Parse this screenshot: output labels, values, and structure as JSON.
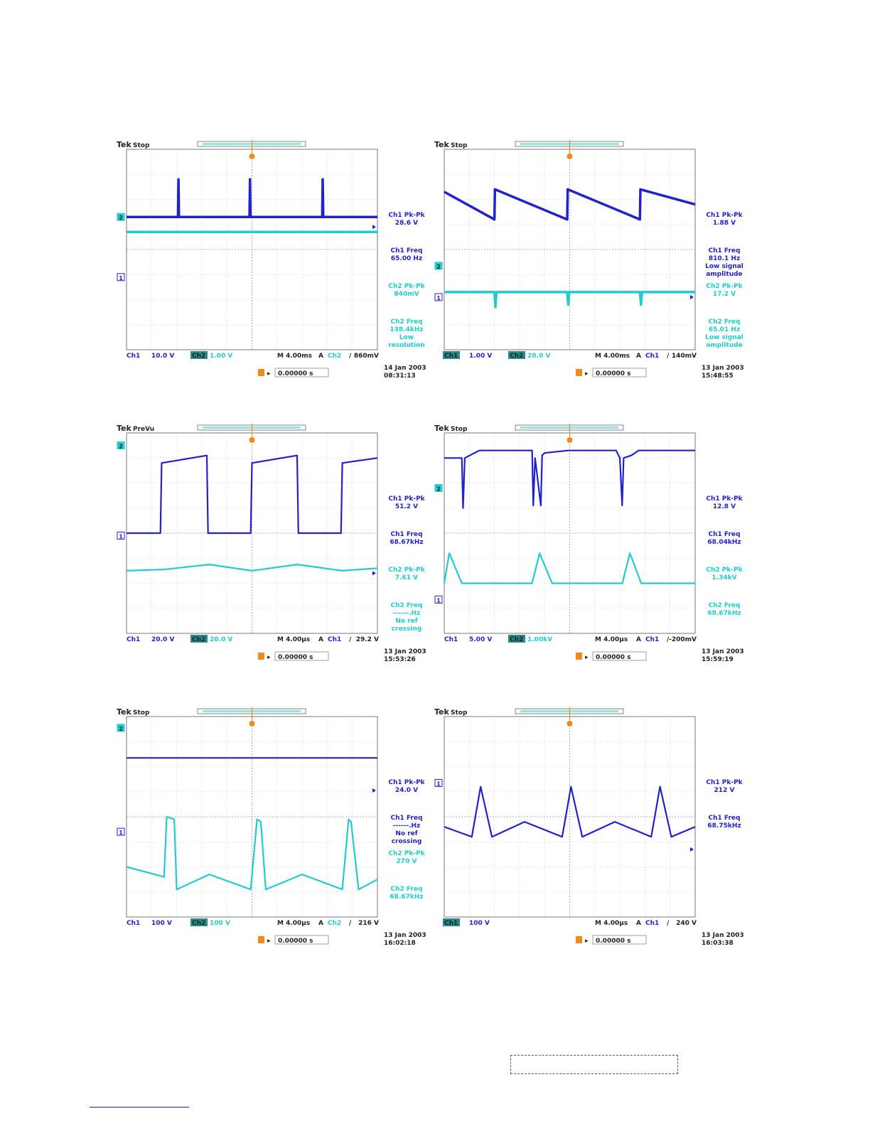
{
  "colors": {
    "ch1": "#2222cc",
    "ch2": "#22cccc",
    "grid": "#b8b8b8",
    "trigger": "#f08a1e"
  },
  "scopes": [
    {
      "brand": "Tek",
      "mode": "Stop",
      "measurements": [
        {
          "label": "Ch1 Pk-Pk",
          "value": "28.6 V",
          "ch": 1
        },
        {
          "label": "Ch1 Freq",
          "value": "65.00 Hz",
          "ch": 1
        },
        {
          "label": "Ch2 Pk-Pk",
          "value": "840mV",
          "ch": 2
        },
        {
          "label": "Ch2 Freq",
          "value": "138.4kHz",
          "extra": [
            "Low",
            "resolution"
          ],
          "ch": 2
        }
      ],
      "bottom": {
        "ch1": "Ch1",
        "ch1_scale": "10.0 V",
        "ch2": "Ch2",
        "ch2_scale": "1.00 V",
        "timebase": "M 4.00ms",
        "trig_mode": "A",
        "trig_src": "Ch2",
        "trig_level": "860mV",
        "ch1_hl": false
      },
      "offset": "0.00000 s",
      "date": "14 Jan  2003",
      "time": "08:31:13",
      "markers": {
        "ch1": 2.9,
        "ch2": 5.3,
        "level": 4.9
      }
    },
    {
      "brand": "Tek",
      "mode": "Stop",
      "measurements": [
        {
          "label": "Ch1 Pk-Pk",
          "value": "1.88 V",
          "ch": 1
        },
        {
          "label": "Ch1 Freq",
          "value": "810.1 Hz",
          "extra": [
            "Low signal",
            "amplitude"
          ],
          "ch": 1
        },
        {
          "label": "Ch2 Pk-Pk",
          "value": "17.2 V",
          "ch": 2
        },
        {
          "label": "Ch2 Freq",
          "value": "65.01 Hz",
          "extra": [
            "Low signal",
            "amplitude"
          ],
          "ch": 2
        }
      ],
      "bottom": {
        "ch1": "Ch1",
        "ch1_scale": "1.00 V",
        "ch2": "Ch2",
        "ch2_scale": "20.0 V",
        "timebase": "M 4.00ms",
        "trig_mode": "A",
        "trig_src": "Ch1",
        "trig_level": "140mV",
        "ch1_hl": true
      },
      "offset": "0.00000 s",
      "date": "13 Jan  2003",
      "time": "15:48:55",
      "markers": {
        "ch1": 2.1,
        "ch2": 3.35,
        "level": 2.1
      }
    },
    {
      "brand": "Tek",
      "mode": "PreVu",
      "measurements": [
        {
          "label": "Ch1 Pk-Pk",
          "value": "51.2 V",
          "ch": 1
        },
        {
          "label": "Ch1 Freq",
          "value": "68.67kHz",
          "ch": 1
        },
        {
          "label": "Ch2 Pk-Pk",
          "value": "7.61 V",
          "ch": 2
        },
        {
          "label": "Ch2 Freq",
          "value": "------.Hz",
          "extra": [
            "No ref",
            "crossing"
          ],
          "ch": 2
        }
      ],
      "bottom": {
        "ch1": "Ch1",
        "ch1_scale": "20.0 V",
        "ch2": "Ch2",
        "ch2_scale": "20.0 V",
        "timebase": "M 4.00µs",
        "trig_mode": "A",
        "trig_src": "Ch1",
        "trig_level": "29.2 V",
        "ch1_hl": false
      },
      "offset": "0.00000 s",
      "date": "13 Jan  2003",
      "time": "15:53:26",
      "markers": {
        "ch1": 3.9,
        "ch2": 7.5,
        "level": 2.4
      }
    },
    {
      "brand": "Tek",
      "mode": "Stop",
      "measurements": [
        {
          "label": "Ch1 Pk-Pk",
          "value": "12.8 V",
          "ch": 1
        },
        {
          "label": "Ch1 Freq",
          "value": "68.04kHz",
          "ch": 1
        },
        {
          "label": "Ch2 Pk-Pk",
          "value": "1.34kV",
          "ch": 2
        },
        {
          "label": "Ch2 Freq",
          "value": "68.67kHz",
          "ch": 2
        }
      ],
      "bottom": {
        "ch1": "Ch1",
        "ch1_scale": "5.00 V",
        "ch2": "Ch2",
        "ch2_scale": "1.00kV",
        "timebase": "M 4.00µs",
        "trig_mode": "A",
        "trig_src": "Ch1",
        "trig_level": "-200mV",
        "ch1_hl": false
      },
      "offset": "0.00000 s",
      "date": "13 Jan  2003",
      "time": "15:59:19",
      "markers": {
        "ch1": 1.35,
        "ch2": 5.8,
        "level": null
      }
    },
    {
      "brand": "Tek",
      "mode": "Stop",
      "measurements": [
        {
          "label": "Ch1 Pk-Pk",
          "value": "24.0 V",
          "ch": 1
        },
        {
          "label": "Ch1 Freq",
          "value": "------.Hz",
          "extra": [
            "No ref",
            "crossing"
          ],
          "ch": 1
        },
        {
          "label": "Ch2 Pk-Pk",
          "value": "270 V",
          "ch": 2
        },
        {
          "label": "Ch2 Freq",
          "value": "68.67kHz",
          "ch": 2
        }
      ],
      "bottom": {
        "ch1": "Ch1",
        "ch1_scale": "100 V",
        "ch2": "Ch2",
        "ch2_scale": "100 V",
        "timebase": "M 4.00µs",
        "trig_mode": "A",
        "trig_src": "Ch2",
        "trig_level": "216 V",
        "ch1_hl": false
      },
      "offset": "0.00000 s",
      "date": "13 Jan  2003",
      "time": "16:02:18",
      "markers": {
        "ch1": 3.4,
        "ch2": 7.55,
        "level": 5.05
      }
    },
    {
      "brand": "Tek",
      "mode": "Stop",
      "measurements": [
        {
          "label": "Ch1 Pk-Pk",
          "value": "212 V",
          "ch": 1
        },
        {
          "label": "Ch1 Freq",
          "value": "68.75kHz",
          "ch": 1
        }
      ],
      "bottom": {
        "ch1": "Ch1",
        "ch1_scale": "100 V",
        "ch2": "",
        "ch2_scale": "",
        "timebase": "M 4.00µs",
        "trig_mode": "A",
        "trig_src": "Ch1",
        "trig_level": "240 V",
        "ch1_hl": true
      },
      "offset": "0.00000 s",
      "date": "13 Jan  2003",
      "time": "16:03:38",
      "markers": {
        "ch1": 5.35,
        "ch2": null,
        "level": 2.7
      }
    }
  ],
  "chart_data": [
    {
      "type": "line",
      "title": "",
      "x_unit": "div",
      "y_unit": "div",
      "xlim": [
        0,
        10
      ],
      "ylim": [
        0,
        8
      ],
      "grid": true,
      "series": [
        {
          "name": "Ch1",
          "x": [
            0,
            2.05,
            2.07,
            2.09,
            4.9,
            4.92,
            4.94,
            7.8,
            7.82,
            7.84,
            10
          ],
          "y": [
            5.3,
            5.3,
            6.8,
            5.3,
            5.3,
            6.8,
            5.3,
            5.3,
            6.8,
            5.3,
            5.3
          ]
        },
        {
          "name": "Ch2",
          "x": [
            0,
            10
          ],
          "y": [
            4.7,
            4.7
          ]
        }
      ]
    },
    {
      "type": "line",
      "title": "",
      "x_unit": "div",
      "y_unit": "div",
      "xlim": [
        0,
        10
      ],
      "ylim": [
        0,
        8
      ],
      "grid": true,
      "series": [
        {
          "name": "Ch1",
          "x": [
            0,
            2.0,
            2.02,
            4.9,
            4.92,
            7.8,
            7.82,
            10
          ],
          "y": [
            6.3,
            5.2,
            6.4,
            5.2,
            6.4,
            5.2,
            6.4,
            5.8
          ]
        },
        {
          "name": "Ch2",
          "x": [
            0,
            2.0,
            2.04,
            2.08,
            4.9,
            4.94,
            4.98,
            7.8,
            7.84,
            7.88,
            10
          ],
          "y": [
            2.3,
            2.3,
            1.7,
            2.3,
            2.3,
            1.8,
            2.3,
            2.3,
            1.8,
            2.3,
            2.3
          ]
        }
      ]
    },
    {
      "type": "line",
      "title": "",
      "x_unit": "div",
      "y_unit": "div",
      "xlim": [
        0,
        10
      ],
      "ylim": [
        0,
        8
      ],
      "grid": true,
      "series": [
        {
          "name": "Ch1",
          "x": [
            0,
            1.35,
            1.4,
            3.2,
            3.25,
            4.95,
            5.0,
            6.8,
            6.85,
            8.55,
            8.6,
            10
          ],
          "y": [
            4.0,
            4.0,
            6.8,
            7.1,
            4.0,
            4.0,
            6.8,
            7.1,
            4.0,
            4.0,
            6.8,
            7.0
          ]
        },
        {
          "name": "Ch2",
          "x": [
            0,
            1.5,
            3.3,
            5.0,
            6.8,
            8.6,
            10
          ],
          "y": [
            2.5,
            2.55,
            2.75,
            2.5,
            2.75,
            2.5,
            2.6
          ]
        }
      ]
    },
    {
      "type": "line",
      "title": "",
      "x_unit": "div",
      "y_unit": "div",
      "xlim": [
        0,
        10
      ],
      "ylim": [
        0,
        8
      ],
      "grid": true,
      "series": [
        {
          "name": "Ch1",
          "x": [
            0,
            0.7,
            0.75,
            0.82,
            1.4,
            3.5,
            3.55,
            3.62,
            3.85,
            3.9,
            4.0,
            4.95,
            6.85,
            7.0,
            7.09,
            7.15,
            7.45,
            7.75,
            8.6,
            10
          ],
          "y": [
            7.0,
            7.0,
            5.0,
            7.0,
            7.3,
            7.3,
            5.1,
            7.0,
            5.1,
            7.1,
            7.2,
            7.3,
            7.3,
            7.0,
            5.1,
            7.0,
            7.1,
            7.3,
            7.3,
            7.3
          ]
        },
        {
          "name": "Ch2",
          "x": [
            0,
            0.2,
            0.7,
            3.5,
            3.8,
            4.3,
            7.1,
            7.4,
            7.85,
            10
          ],
          "y": [
            2.0,
            3.2,
            2.0,
            2.0,
            3.2,
            2.0,
            2.0,
            3.2,
            2.0,
            2.0
          ]
        }
      ]
    },
    {
      "type": "line",
      "title": "",
      "x_unit": "div",
      "y_unit": "div",
      "xlim": [
        0,
        10
      ],
      "ylim": [
        0,
        8
      ],
      "grid": true,
      "series": [
        {
          "name": "Ch1",
          "x": [
            0,
            10
          ],
          "y": [
            6.35,
            6.35
          ]
        },
        {
          "name": "Ch2",
          "x": [
            0,
            1.5,
            1.6,
            1.9,
            2.0,
            3.3,
            4.95,
            5.2,
            5.35,
            5.55,
            7.0,
            8.6,
            8.85,
            8.95,
            9.25,
            10
          ],
          "y": [
            2.0,
            1.6,
            4.0,
            3.9,
            1.1,
            1.7,
            1.1,
            3.9,
            3.8,
            1.1,
            1.7,
            1.1,
            3.9,
            3.8,
            1.1,
            1.5
          ]
        }
      ]
    },
    {
      "type": "line",
      "title": "",
      "x_unit": "div",
      "y_unit": "div",
      "xlim": [
        0,
        10
      ],
      "ylim": [
        0,
        8
      ],
      "grid": true,
      "series": [
        {
          "name": "Ch1",
          "x": [
            0,
            1.1,
            1.45,
            1.9,
            3.2,
            4.7,
            5.05,
            5.5,
            6.8,
            8.25,
            8.6,
            9.05,
            10
          ],
          "y": [
            3.6,
            3.2,
            5.2,
            3.2,
            3.8,
            3.2,
            5.2,
            3.2,
            3.8,
            3.2,
            5.2,
            3.2,
            3.6
          ]
        }
      ]
    }
  ]
}
